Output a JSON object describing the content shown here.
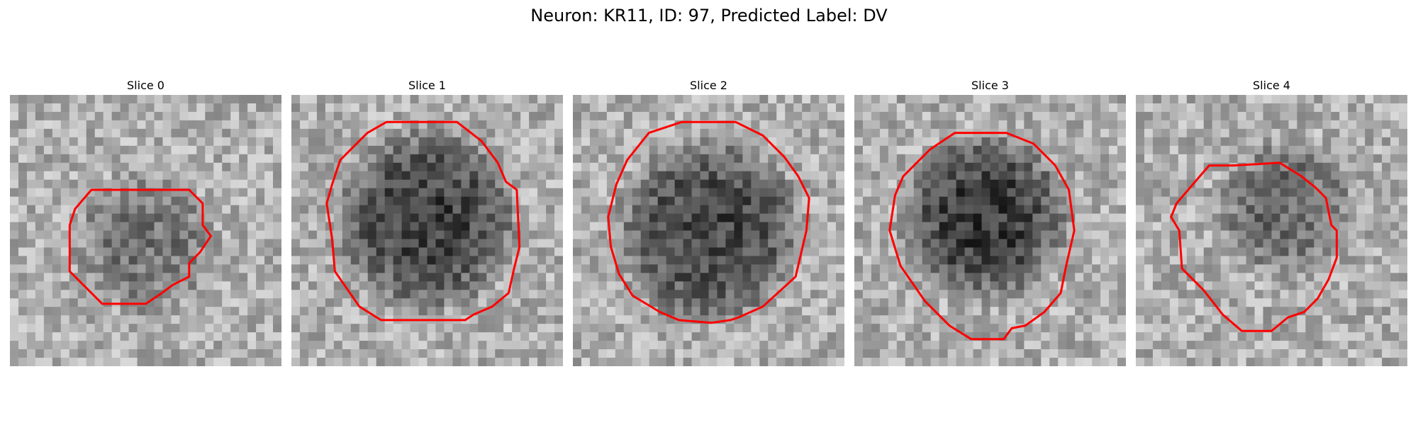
{
  "figure": {
    "title": "Neuron: KR11, ID: 97, Predicted Label: DV"
  },
  "contour_color": "#ff0000",
  "panels": [
    {
      "title": "Slice 0",
      "content": "grayscale microscopy patch; faint dark blob centered, small red contour",
      "darkness": 0.45,
      "blob_center": [
        0.5,
        0.55
      ],
      "blob_radius": 0.28,
      "contour": [
        [
          0.24,
          0.42
        ],
        [
          0.3,
          0.35
        ],
        [
          0.66,
          0.35
        ],
        [
          0.71,
          0.4
        ],
        [
          0.71,
          0.48
        ],
        [
          0.74,
          0.52
        ],
        [
          0.7,
          0.58
        ],
        [
          0.66,
          0.62
        ],
        [
          0.66,
          0.67
        ],
        [
          0.6,
          0.7
        ],
        [
          0.56,
          0.73
        ],
        [
          0.5,
          0.77
        ],
        [
          0.34,
          0.77
        ],
        [
          0.22,
          0.65
        ],
        [
          0.22,
          0.48
        ]
      ]
    },
    {
      "title": "Slice 1",
      "content": "large dark round cell body with red contour",
      "darkness": 0.85,
      "blob_center": [
        0.5,
        0.46
      ],
      "blob_radius": 0.36,
      "contour": [
        [
          0.18,
          0.24
        ],
        [
          0.28,
          0.14
        ],
        [
          0.35,
          0.1
        ],
        [
          0.61,
          0.1
        ],
        [
          0.7,
          0.17
        ],
        [
          0.76,
          0.25
        ],
        [
          0.79,
          0.32
        ],
        [
          0.83,
          0.35
        ],
        [
          0.84,
          0.56
        ],
        [
          0.82,
          0.64
        ],
        [
          0.8,
          0.73
        ],
        [
          0.74,
          0.78
        ],
        [
          0.67,
          0.81
        ],
        [
          0.64,
          0.83
        ],
        [
          0.33,
          0.83
        ],
        [
          0.25,
          0.78
        ],
        [
          0.16,
          0.65
        ],
        [
          0.15,
          0.53
        ],
        [
          0.13,
          0.4
        ],
        [
          0.15,
          0.33
        ]
      ]
    },
    {
      "title": "Slice 2",
      "content": "large dark round cell body with red contour",
      "darkness": 0.82,
      "blob_center": [
        0.5,
        0.5
      ],
      "blob_radius": 0.37,
      "contour": [
        [
          0.2,
          0.24
        ],
        [
          0.28,
          0.14
        ],
        [
          0.4,
          0.1
        ],
        [
          0.6,
          0.1
        ],
        [
          0.7,
          0.15
        ],
        [
          0.78,
          0.23
        ],
        [
          0.83,
          0.3
        ],
        [
          0.87,
          0.38
        ],
        [
          0.86,
          0.5
        ],
        [
          0.82,
          0.67
        ],
        [
          0.7,
          0.78
        ],
        [
          0.61,
          0.82
        ],
        [
          0.58,
          0.83
        ],
        [
          0.51,
          0.84
        ],
        [
          0.39,
          0.83
        ],
        [
          0.32,
          0.8
        ],
        [
          0.22,
          0.74
        ],
        [
          0.17,
          0.66
        ],
        [
          0.14,
          0.56
        ],
        [
          0.13,
          0.45
        ],
        [
          0.16,
          0.33
        ]
      ]
    },
    {
      "title": "Slice 3",
      "content": "dark round cell body with bright halo below, red contour",
      "darkness": 0.92,
      "blob_center": [
        0.48,
        0.45
      ],
      "blob_radius": 0.33,
      "contour": [
        [
          0.18,
          0.3
        ],
        [
          0.28,
          0.2
        ],
        [
          0.37,
          0.14
        ],
        [
          0.56,
          0.14
        ],
        [
          0.66,
          0.18
        ],
        [
          0.74,
          0.26
        ],
        [
          0.79,
          0.35
        ],
        [
          0.81,
          0.5
        ],
        [
          0.78,
          0.63
        ],
        [
          0.76,
          0.73
        ],
        [
          0.7,
          0.8
        ],
        [
          0.63,
          0.85
        ],
        [
          0.58,
          0.86
        ],
        [
          0.55,
          0.9
        ],
        [
          0.43,
          0.9
        ],
        [
          0.35,
          0.85
        ],
        [
          0.26,
          0.76
        ],
        [
          0.17,
          0.63
        ],
        [
          0.13,
          0.5
        ],
        [
          0.15,
          0.37
        ]
      ]
    },
    {
      "title": "Slice 4",
      "content": "diffuse dark texture, smaller red contour",
      "darkness": 0.55,
      "blob_center": [
        0.55,
        0.42
      ],
      "blob_radius": 0.27,
      "contour": [
        [
          0.21,
          0.33
        ],
        [
          0.27,
          0.26
        ],
        [
          0.36,
          0.26
        ],
        [
          0.53,
          0.25
        ],
        [
          0.61,
          0.3
        ],
        [
          0.66,
          0.34
        ],
        [
          0.7,
          0.38
        ],
        [
          0.72,
          0.48
        ],
        [
          0.74,
          0.5
        ],
        [
          0.74,
          0.6
        ],
        [
          0.71,
          0.68
        ],
        [
          0.67,
          0.75
        ],
        [
          0.62,
          0.8
        ],
        [
          0.56,
          0.82
        ],
        [
          0.5,
          0.87
        ],
        [
          0.39,
          0.87
        ],
        [
          0.32,
          0.81
        ],
        [
          0.25,
          0.72
        ],
        [
          0.17,
          0.64
        ],
        [
          0.16,
          0.5
        ],
        [
          0.13,
          0.45
        ],
        [
          0.15,
          0.4
        ]
      ]
    }
  ]
}
